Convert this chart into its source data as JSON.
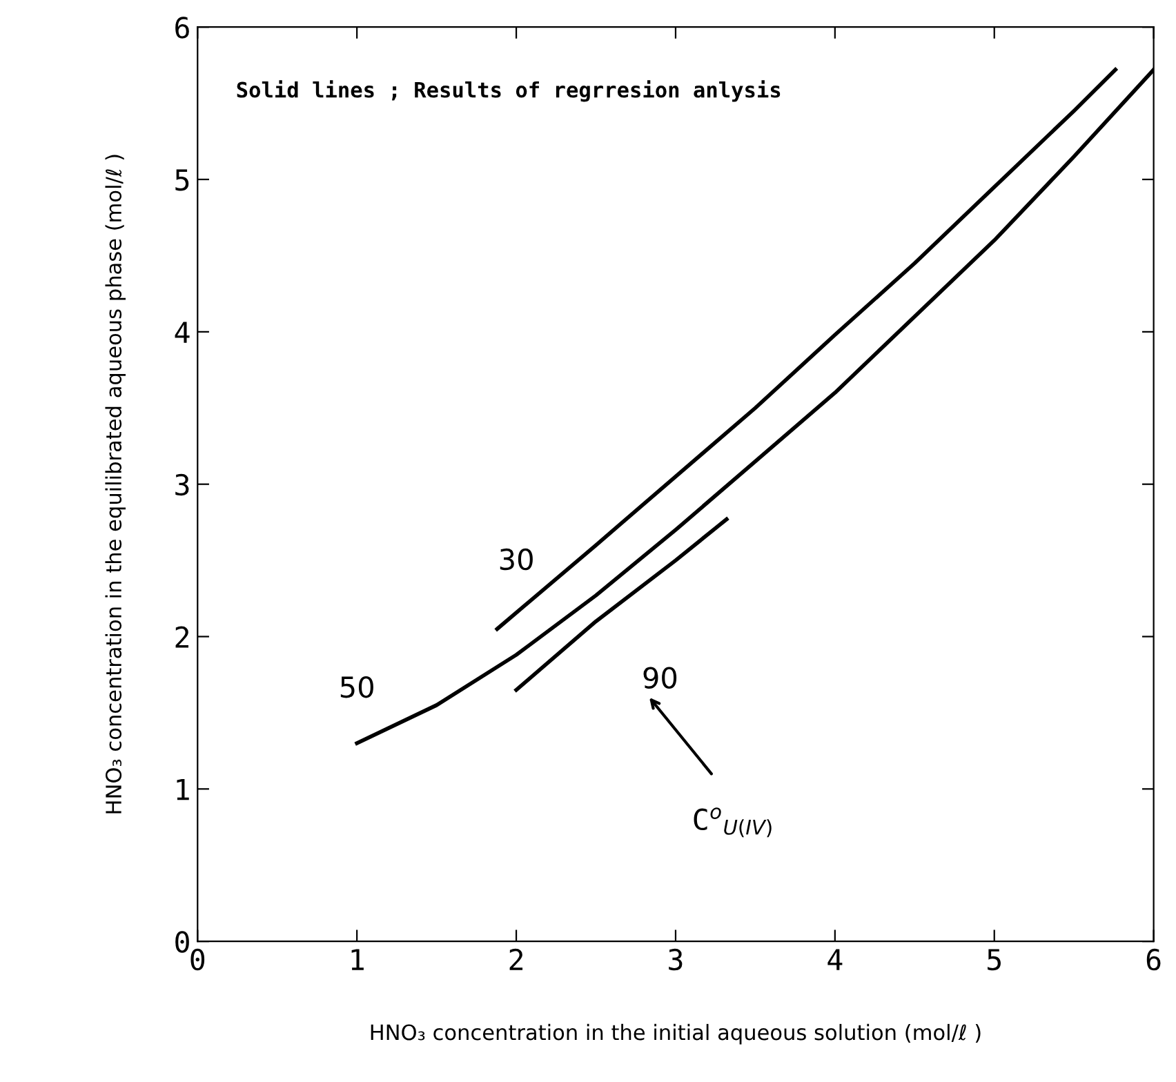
{
  "chart_data": {
    "type": "line",
    "xlabel": "HNO₃ concentration in the initial aqueous solution (mol/ℓ )",
    "ylabel": "HNO₃ concentration in the equilibrated aqueous phase (mol/ℓ )",
    "xlim": [
      0,
      6
    ],
    "ylim": [
      0,
      6
    ],
    "xticks": [
      0,
      1,
      2,
      3,
      4,
      5,
      6
    ],
    "yticks": [
      0,
      1,
      2,
      3,
      4,
      5,
      6
    ],
    "grid": false,
    "legend": false,
    "marker": "none",
    "line_style": "solid",
    "series": [
      {
        "name": "30",
        "color": "#000000",
        "x": [
          1.88,
          2.5,
          3,
          3.5,
          4,
          4.5,
          5,
          5.5,
          5.76
        ],
        "values": [
          2.05,
          2.6,
          3.05,
          3.5,
          3.98,
          4.45,
          4.95,
          5.45,
          5.72
        ]
      },
      {
        "name": "50",
        "color": "#000000",
        "x": [
          1,
          1.5,
          2,
          2.5,
          3,
          3.5,
          4,
          4.5,
          5,
          5.5,
          6
        ],
        "values": [
          1.3,
          1.55,
          1.88,
          2.27,
          2.7,
          3.15,
          3.6,
          4.1,
          4.6,
          5.15,
          5.72
        ]
      },
      {
        "name": "90",
        "color": "#000000",
        "x": [
          2,
          2.5,
          3,
          3.32
        ],
        "values": [
          1.65,
          2.1,
          2.5,
          2.77
        ]
      }
    ],
    "annotations": [
      "Solid lines ; Results of regrresion anlysis",
      "C$^{o}$$_{U(IV)}$"
    ]
  }
}
